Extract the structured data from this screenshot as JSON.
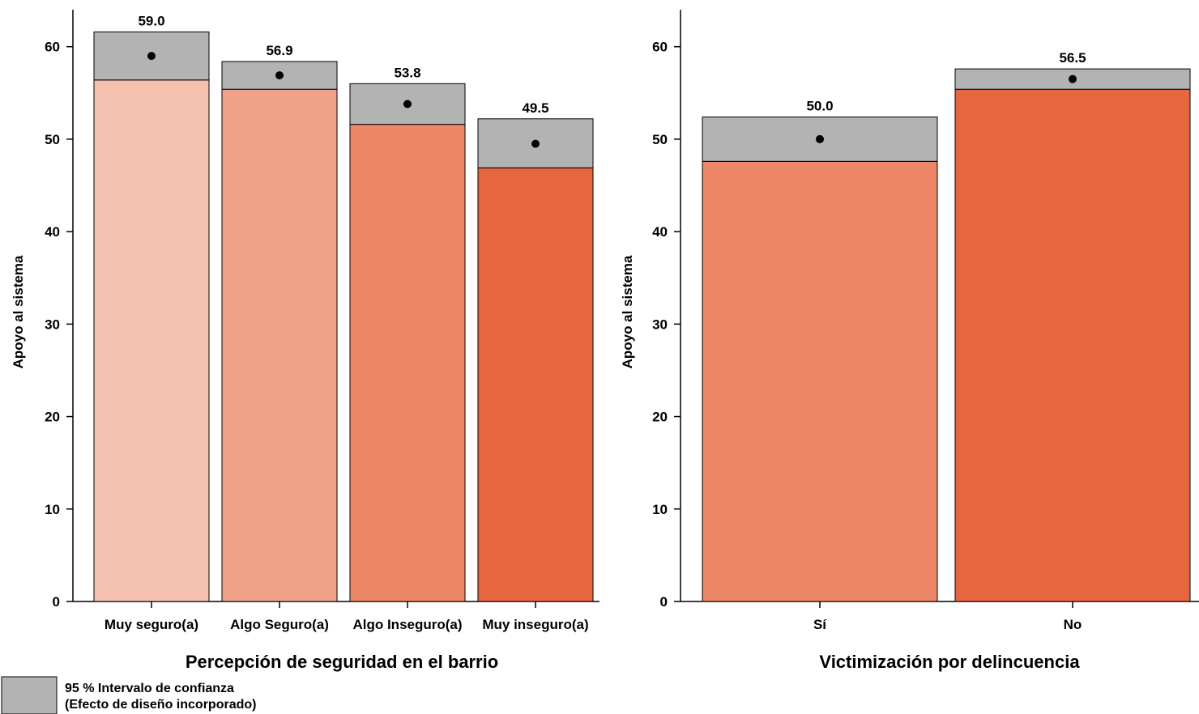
{
  "chart_data": [
    {
      "type": "bar",
      "xlabel": "Percepción de seguridad en el barrio",
      "ylabel": "Apoyo al sistema",
      "ylim": [
        0,
        64
      ],
      "yticks": [
        0,
        10,
        20,
        30,
        40,
        50,
        60
      ],
      "categories": [
        "Muy seguro(a)",
        "Algo Seguro(a)",
        "Algo Inseguro(a)",
        "Muy inseguro(a)"
      ],
      "values": [
        59.0,
        56.9,
        53.8,
        49.5
      ],
      "value_labels": [
        "59.0",
        "56.9",
        "53.8",
        "49.5"
      ],
      "ci_low": [
        56.4,
        55.4,
        51.6,
        46.9
      ],
      "ci_high": [
        61.6,
        58.4,
        56.0,
        52.2
      ],
      "colors": [
        "#f4c0b0",
        "#f0a389",
        "#ed8768",
        "#e6663f"
      ],
      "grid": false
    },
    {
      "type": "bar",
      "xlabel": "Victimización por delincuencia",
      "ylabel": "Apoyo al sistema",
      "ylim": [
        0,
        64
      ],
      "yticks": [
        0,
        10,
        20,
        30,
        40,
        50,
        60
      ],
      "categories": [
        "Sí",
        "No"
      ],
      "values": [
        50.0,
        56.5
      ],
      "value_labels": [
        "50.0",
        "56.5"
      ],
      "ci_low": [
        47.6,
        55.4
      ],
      "ci_high": [
        52.4,
        57.6
      ],
      "colors": [
        "#ed8768",
        "#e6663f"
      ],
      "grid": false
    }
  ],
  "legend": {
    "ci_color": "#b3b3b3",
    "line1": "95 % Intervalo de confianza",
    "line2": "(Efecto de diseño incorporado)"
  }
}
